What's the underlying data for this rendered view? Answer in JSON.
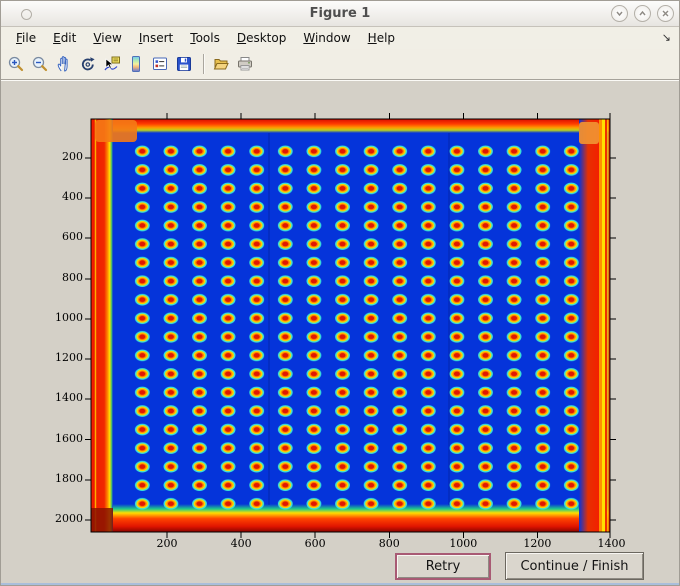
{
  "window": {
    "title": "Figure 1",
    "controls": {
      "shade": "chevron-down",
      "maximize": "chevron-up",
      "close": "x"
    }
  },
  "menu": {
    "items": [
      "File",
      "Edit",
      "View",
      "Insert",
      "Tools",
      "Desktop",
      "Window",
      "Help"
    ],
    "overflow_arrow": "↘"
  },
  "toolbar": {
    "icons": [
      "zoom-in",
      "zoom-out",
      "pan",
      "rotate-3d",
      "data-cursor",
      "insert-colorbar",
      "insert-legend",
      "save-figure",
      "open-file",
      "print-figure"
    ]
  },
  "plot": {
    "x_tick_labels": [
      "200",
      "400",
      "600",
      "800",
      "1000",
      "1200",
      "1400"
    ],
    "y_tick_labels": [
      "200",
      "400",
      "600",
      "800",
      "1000",
      "1200",
      "1400",
      "1600",
      "1800",
      "2000"
    ],
    "colors": {
      "background_blue": "#0534da",
      "spot_halo_cyan": "#3ae0d8",
      "spot_ring_yellow": "#ffd800",
      "spot_mid_orange": "#ff8800",
      "spot_core_red": "#e01800",
      "border_red": "#f22000"
    }
  },
  "buttons": {
    "retry": "Retry",
    "continue_finish": "Continue / Finish"
  },
  "chart_data": {
    "type": "heatmap",
    "title": "",
    "x_ticks": [
      200,
      400,
      600,
      800,
      1000,
      1200,
      1400
    ],
    "y_ticks": [
      200,
      400,
      600,
      800,
      1000,
      1200,
      1400,
      1600,
      1800,
      2000
    ],
    "x_range_estimate": [
      0,
      1410
    ],
    "y_range_estimate": [
      0,
      2070
    ],
    "colormap": "jet",
    "spot_grid": {
      "rows": 20,
      "cols": 16
    },
    "content": "Scanned microplate / microarray image rendered with a jet colormap: ~20 rows x 16 columns of spots with hot red/orange centers, yellow rings and cyan halos on a deep blue background; saturated red/orange bands along all four plate edges"
  }
}
